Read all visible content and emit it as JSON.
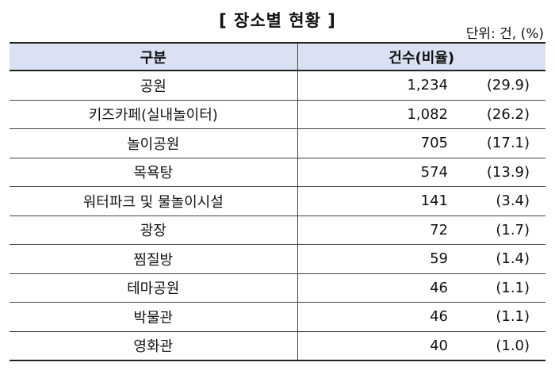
{
  "title": "[ 장소별 현황 ]",
  "unit": "단위: 건, (%)",
  "table": {
    "headers": {
      "category": "구분",
      "count_ratio": "건수(비율)"
    },
    "rows": [
      {
        "category": "공원",
        "count": "1,234",
        "ratio": "(29.9)"
      },
      {
        "category": "키즈카페(실내놀이터)",
        "count": "1,082",
        "ratio": "(26.2)"
      },
      {
        "category": "놀이공원",
        "count": "705",
        "ratio": "(17.1)"
      },
      {
        "category": "목욕탕",
        "count": "574",
        "ratio": "(13.9)"
      },
      {
        "category": "워터파크 및 물놀이시설",
        "count": "141",
        "ratio": "(3.4)"
      },
      {
        "category": "광장",
        "count": "72",
        "ratio": "(1.7)"
      },
      {
        "category": "찜질방",
        "count": "59",
        "ratio": "(1.4)"
      },
      {
        "category": "테마공원",
        "count": "46",
        "ratio": "(1.1)"
      },
      {
        "category": "박물관",
        "count": "46",
        "ratio": "(1.1)"
      },
      {
        "category": "영화관",
        "count": "40",
        "ratio": "(1.0)"
      }
    ]
  }
}
